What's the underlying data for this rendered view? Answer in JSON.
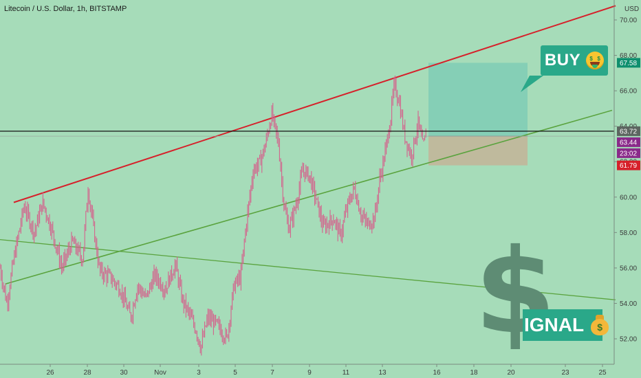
{
  "header": {
    "symbol_title": "Litecoin / U.S. Dollar, 1h, BITSTAMP"
  },
  "colors": {
    "background": "#a6dcb9",
    "candles": "#d4628c",
    "resistance_line": "#d6202a",
    "support_line": "#5aa33e",
    "horizontal_line": "#111111",
    "target_zone": "#7fcdb5",
    "stop_zone": "#c2b69a",
    "buy_callout": "#2aa889",
    "dollar_sign": "#5e8c74"
  },
  "annotations": {
    "buy_label": "BUY",
    "signal_label": "IGNAL",
    "buy_emoji": "money-mouth-face-icon",
    "signal_emoji": "money-bag-icon"
  },
  "chart_data": {
    "type": "candlestick",
    "symbol": "Litecoin / U.S. Dollar",
    "interval": "1h",
    "exchange": "BITSTAMP",
    "y_axis": {
      "unit_label": "USD",
      "ticks": [
        "52.00",
        "54.00",
        "56.00",
        "58.00",
        "60.00",
        "62.00",
        "64.00",
        "66.00",
        "68.00",
        "70.00"
      ],
      "ylim": [
        50.9,
        71.0
      ]
    },
    "x_axis": {
      "ticks": [
        "26",
        "28",
        "30",
        "Nov",
        "3",
        "5",
        "7",
        "9",
        "11",
        "13",
        "16",
        "18",
        "20",
        "23",
        "25"
      ]
    },
    "price_path": [
      [
        0,
        56.0
      ],
      [
        10,
        54.0
      ],
      [
        20,
        56.5
      ],
      [
        35,
        59.5
      ],
      [
        50,
        58.0
      ],
      [
        62,
        59.7
      ],
      [
        75,
        58.2
      ],
      [
        90,
        56.0
      ],
      [
        105,
        57.5
      ],
      [
        120,
        56.5
      ],
      [
        128,
        60.5
      ],
      [
        135,
        58.5
      ],
      [
        145,
        55.8
      ],
      [
        160,
        55.5
      ],
      [
        175,
        54.8
      ],
      [
        190,
        53.2
      ],
      [
        200,
        55.0
      ],
      [
        212,
        54.3
      ],
      [
        225,
        55.6
      ],
      [
        240,
        54.8
      ],
      [
        255,
        56.2
      ],
      [
        265,
        54.2
      ],
      [
        275,
        53.4
      ],
      [
        285,
        52.5
      ],
      [
        292,
        51.5
      ],
      [
        302,
        53.2
      ],
      [
        315,
        52.8
      ],
      [
        330,
        52.0
      ],
      [
        340,
        55.0
      ],
      [
        350,
        55.5
      ],
      [
        358,
        58.5
      ],
      [
        368,
        61.5
      ],
      [
        378,
        62.0
      ],
      [
        385,
        62.8
      ],
      [
        395,
        64.7
      ],
      [
        405,
        63.0
      ],
      [
        413,
        59.5
      ],
      [
        420,
        58.2
      ],
      [
        430,
        59.5
      ],
      [
        440,
        61.5
      ],
      [
        450,
        61.2
      ],
      [
        460,
        59.8
      ],
      [
        470,
        58.3
      ],
      [
        485,
        58.8
      ],
      [
        495,
        57.8
      ],
      [
        505,
        59.5
      ],
      [
        515,
        60.5
      ],
      [
        525,
        59.0
      ],
      [
        535,
        58.4
      ],
      [
        545,
        58.9
      ],
      [
        552,
        61.0
      ],
      [
        560,
        62.5
      ],
      [
        568,
        64.5
      ],
      [
        573,
        66.3
      ],
      [
        580,
        65.5
      ],
      [
        588,
        63.5
      ],
      [
        598,
        62.3
      ],
      [
        608,
        64.2
      ],
      [
        615,
        62.8
      ],
      [
        620,
        63.7
      ]
    ],
    "trendlines": [
      {
        "role": "resistance",
        "from": [
          20,
          59.7
        ],
        "to": [
          895,
          70.8
        ]
      },
      {
        "role": "support",
        "from": [
          8,
          55.1
        ],
        "to": [
          890,
          64.9
        ]
      },
      {
        "role": "lower-channel",
        "from": [
          0,
          57.6
        ],
        "to": [
          895,
          54.2
        ]
      },
      {
        "role": "upper-channel-prev",
        "from": [
          0,
          71.2
        ],
        "to": [
          245,
          71.5
        ]
      }
    ],
    "horizontal_level": 63.72,
    "position": {
      "type": "long",
      "entry": 63.44,
      "target": 67.58,
      "stop": 61.79
    },
    "price_labels": [
      {
        "value": "67.58",
        "role": "target"
      },
      {
        "value": "63.72",
        "role": "horizontal-level"
      },
      {
        "value": "63.44",
        "role": "last-price"
      },
      {
        "value": "23:02",
        "role": "countdown"
      },
      {
        "value": "61.79",
        "role": "stop"
      }
    ],
    "grid": false,
    "legend": "none"
  }
}
